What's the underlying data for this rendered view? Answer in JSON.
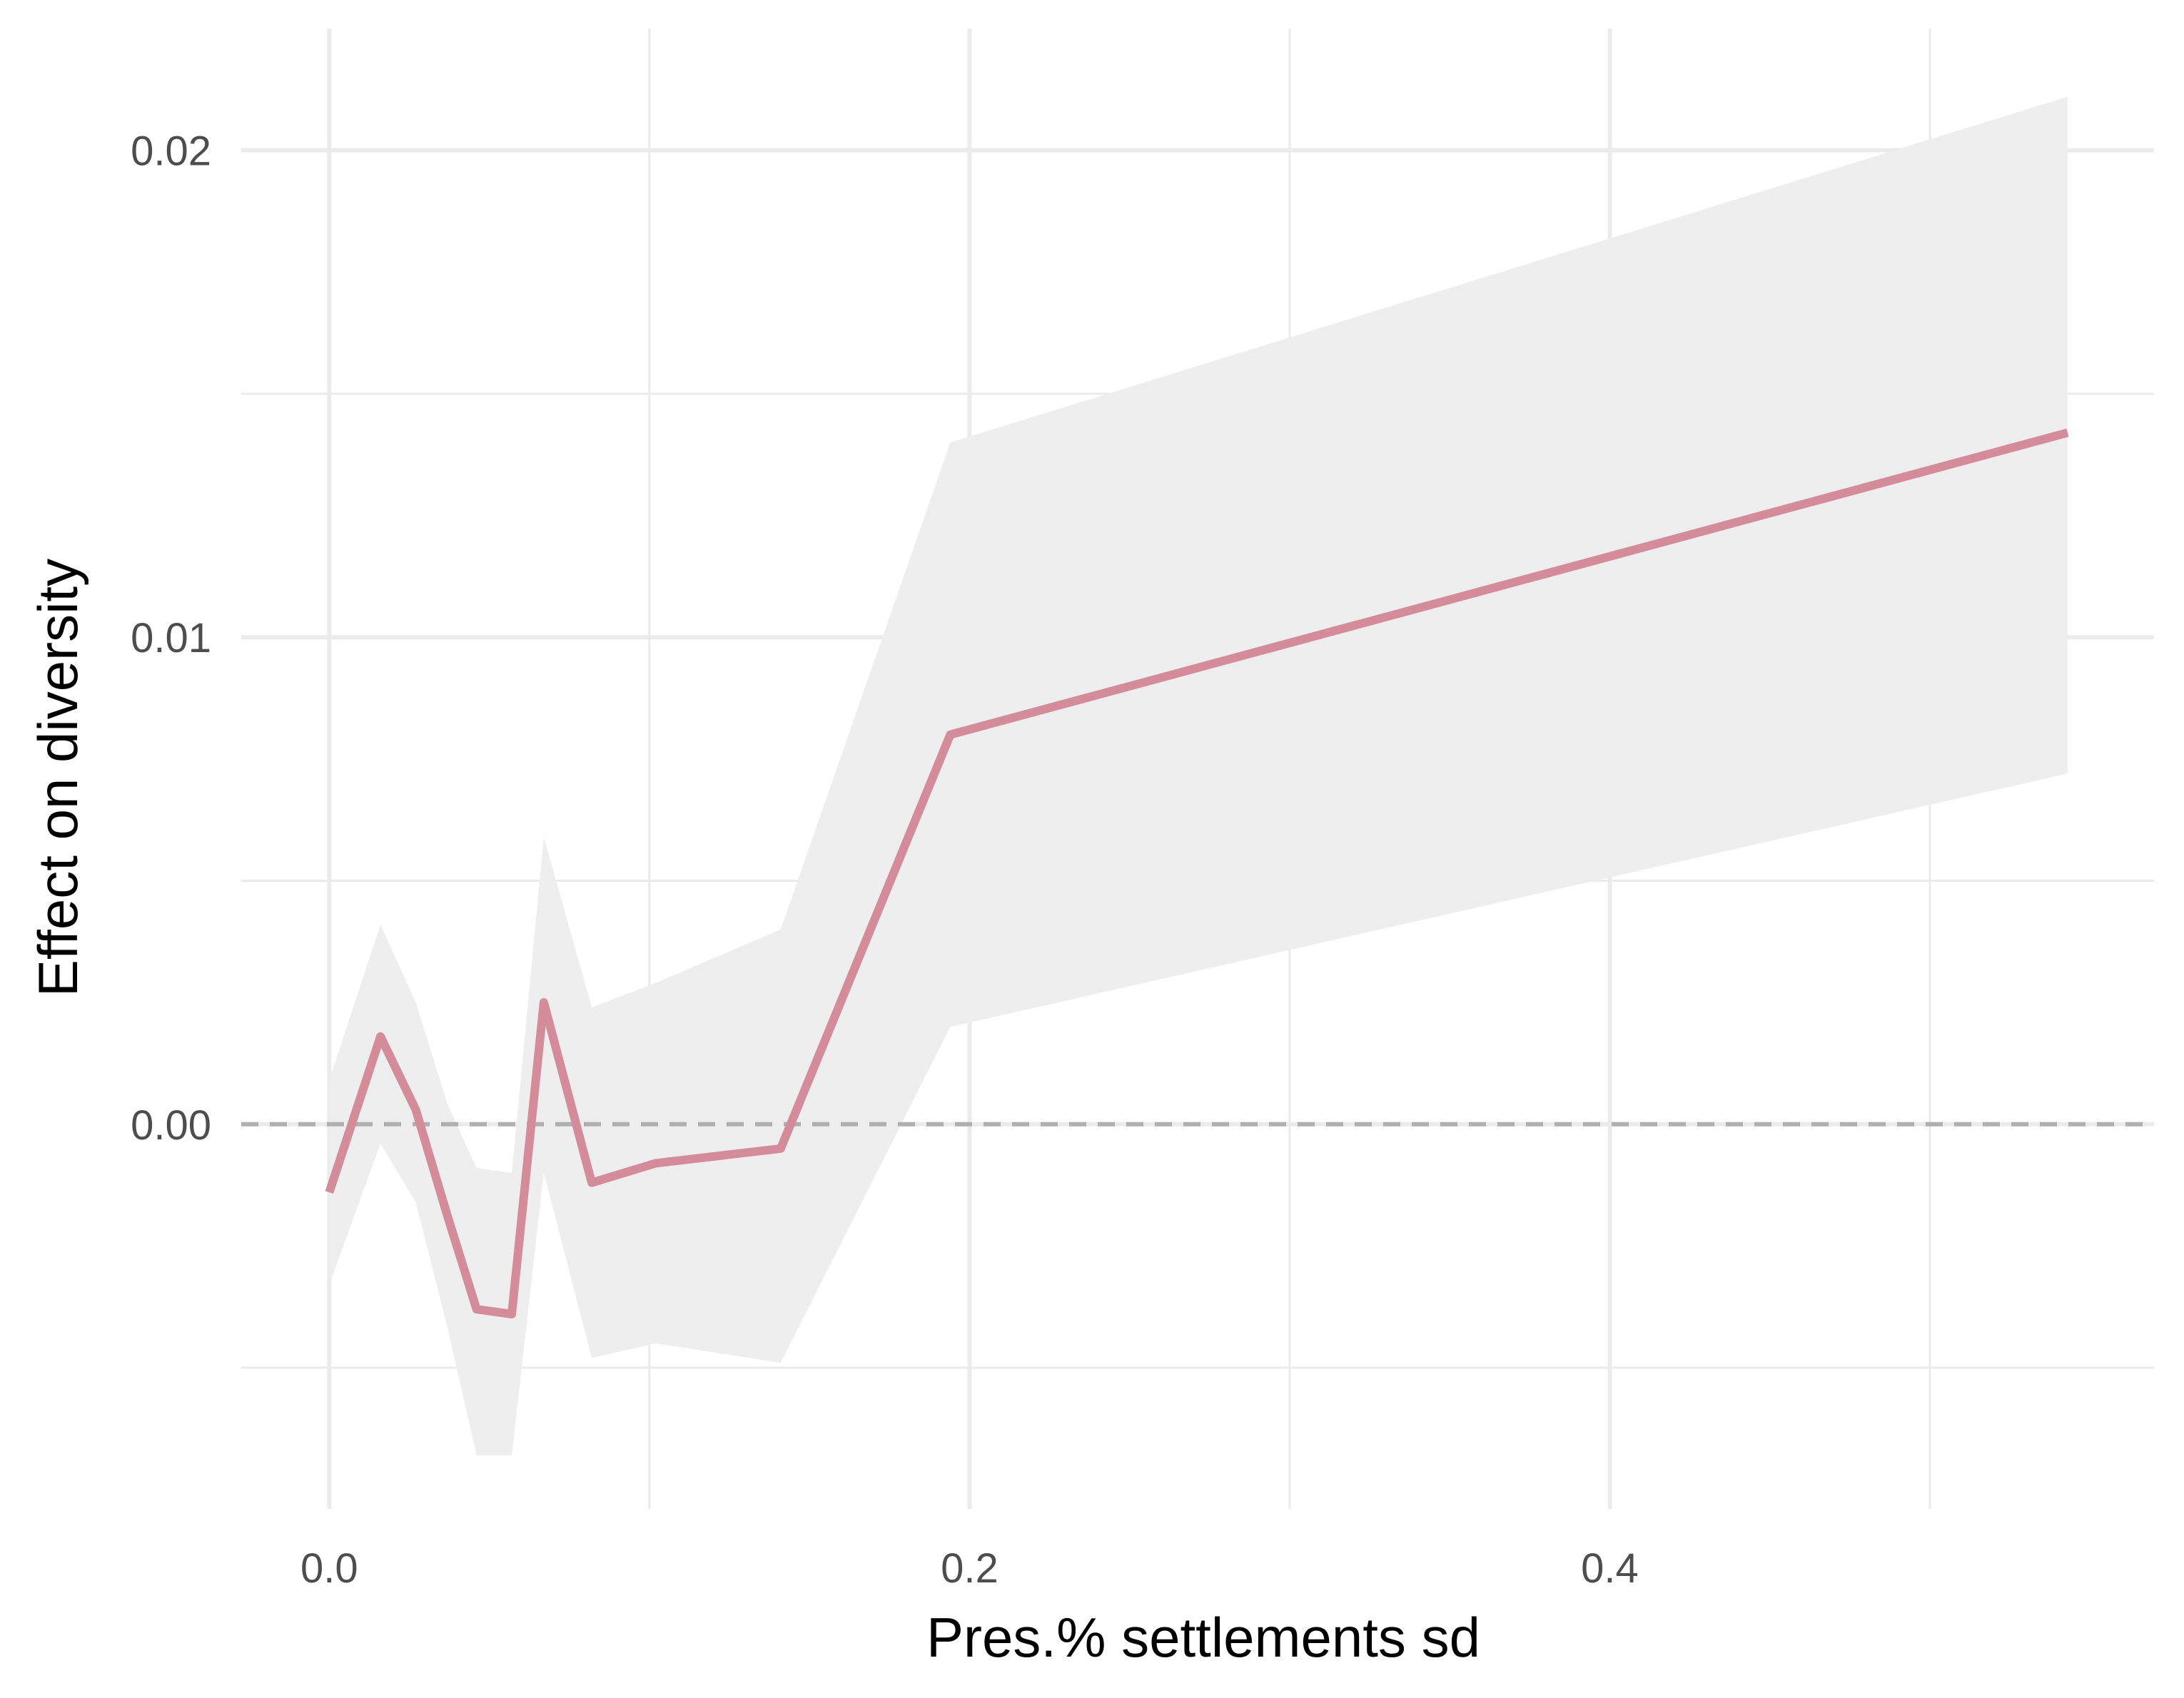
{
  "chart_data": {
    "type": "line",
    "title": "",
    "xlabel": "Pres.% settlements sd",
    "ylabel": "Effect on diversity",
    "xlim": [
      -0.0275,
      0.57
    ],
    "ylim": [
      -0.0079,
      0.0225
    ],
    "x_ticks": [
      {
        "value": 0.0,
        "label": "0.0"
      },
      {
        "value": 0.2,
        "label": "0.2"
      },
      {
        "value": 0.4,
        "label": "0.4"
      }
    ],
    "x_minor_ticks": [
      0.1,
      0.3,
      0.5
    ],
    "y_ticks": [
      {
        "value": 0.0,
        "label": "0.00"
      },
      {
        "value": 0.01,
        "label": "0.01"
      },
      {
        "value": 0.02,
        "label": "0.02"
      }
    ],
    "y_minor_ticks": [
      -0.005,
      0.005,
      0.015
    ],
    "grid": true,
    "reference_line": {
      "y": 0.0,
      "style": "dashed",
      "color": "#b0b0b0"
    },
    "series": [
      {
        "line_color": "#d48b9a",
        "band_color": "#eeeeee",
        "points": [
          {
            "x": 0.0,
            "y": -0.0014,
            "lower": -0.0033,
            "upper": 0.0009
          },
          {
            "x": 0.016,
            "y": 0.0018,
            "lower": -0.0004,
            "upper": 0.0041
          },
          {
            "x": 0.027,
            "y": 0.0003,
            "lower": -0.0016,
            "upper": 0.0025
          },
          {
            "x": 0.037,
            "y": -0.0019,
            "lower": -0.0042,
            "upper": 0.0004
          },
          {
            "x": 0.046,
            "y": -0.0038,
            "lower": -0.0068,
            "upper": -0.0009
          },
          {
            "x": 0.057,
            "y": -0.0039,
            "lower": -0.0068,
            "upper": -0.001
          },
          {
            "x": 0.067,
            "y": 0.0025,
            "lower": -0.001,
            "upper": 0.0059
          },
          {
            "x": 0.082,
            "y": -0.0012,
            "lower": -0.0048,
            "upper": 0.0024
          },
          {
            "x": 0.102,
            "y": -0.0008,
            "lower": -0.0045,
            "upper": 0.0029
          },
          {
            "x": 0.141,
            "y": -0.0005,
            "lower": -0.0049,
            "upper": 0.004
          },
          {
            "x": 0.194,
            "y": 0.008,
            "lower": 0.002,
            "upper": 0.014
          },
          {
            "x": 0.543,
            "y": 0.0142,
            "lower": 0.0072,
            "upper": 0.0211
          }
        ]
      }
    ]
  }
}
